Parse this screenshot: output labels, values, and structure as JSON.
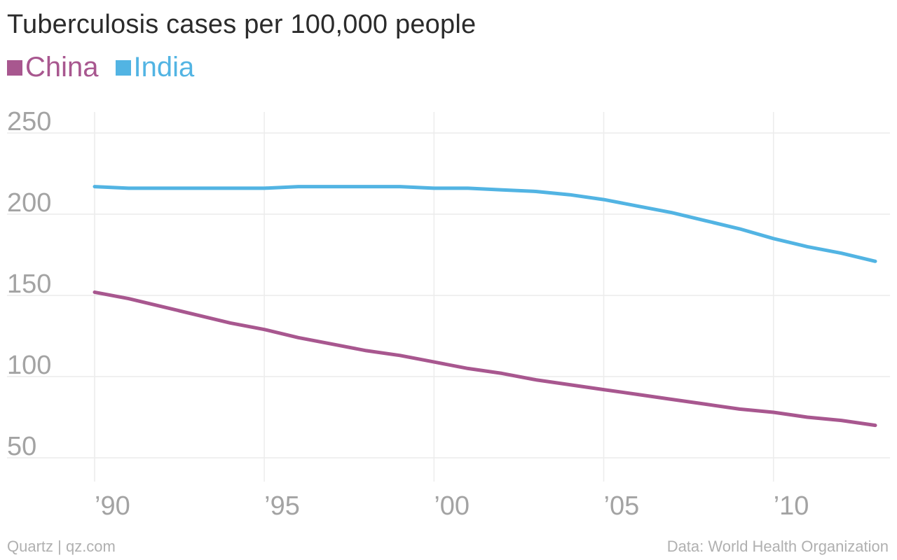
{
  "title": "Tuberculosis cases per 100,000 people",
  "credit": "Quartz | qz.com",
  "source": "Data: World Health Organization",
  "colors": {
    "China": "#a8578f",
    "India": "#52b4e3",
    "grid": "#ececec",
    "tick_text": "#a3a3a3"
  },
  "chart_data": {
    "type": "line",
    "title": "Tuberculosis cases per 100,000 people",
    "xlabel": "",
    "ylabel": "",
    "x": [
      1990,
      1991,
      1992,
      1993,
      1994,
      1995,
      1996,
      1997,
      1998,
      1999,
      2000,
      2001,
      2002,
      2003,
      2004,
      2005,
      2006,
      2007,
      2008,
      2009,
      2010,
      2011,
      2012,
      2013
    ],
    "x_ticks": [
      1990,
      1995,
      2000,
      2005,
      2010
    ],
    "x_tick_labels": [
      "’90",
      "’95",
      "’00",
      "’05",
      "’10"
    ],
    "y_ticks": [
      50,
      100,
      150,
      200,
      250
    ],
    "y_tick_labels": [
      "50",
      "100",
      "150",
      "200",
      "250"
    ],
    "xlim": [
      1990,
      2013
    ],
    "ylim": [
      50,
      250
    ],
    "grid": true,
    "legend_position": "top-left",
    "series": [
      {
        "name": "China",
        "values": [
          152,
          148,
          143,
          138,
          133,
          129,
          124,
          120,
          116,
          113,
          109,
          105,
          102,
          98,
          95,
          92,
          89,
          86,
          83,
          80,
          78,
          75,
          73,
          70
        ]
      },
      {
        "name": "India",
        "values": [
          217,
          216,
          216,
          216,
          216,
          216,
          217,
          217,
          217,
          217,
          216,
          216,
          215,
          214,
          212,
          209,
          205,
          201,
          196,
          191,
          185,
          180,
          176,
          171
        ]
      }
    ]
  }
}
